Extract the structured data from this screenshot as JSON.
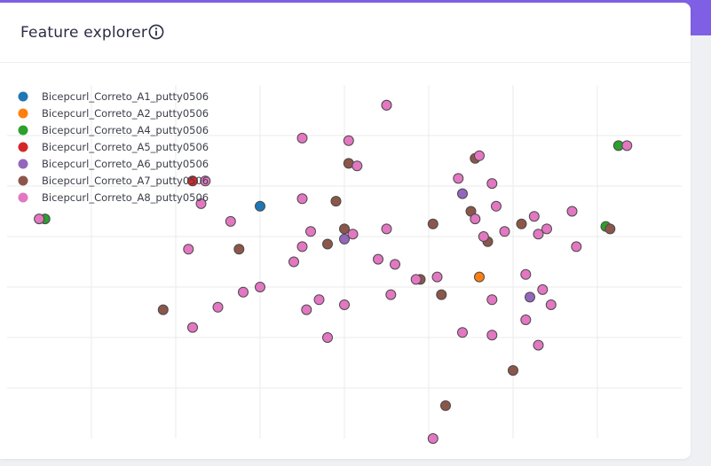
{
  "header": {
    "title": "Feature explorer",
    "info_icon": "info-circle-icon"
  },
  "colors": {
    "accent": "#7f5fe3",
    "card": "#ffffff"
  },
  "chart_data": {
    "type": "scatter",
    "title": "",
    "xlabel": "",
    "ylabel": "",
    "xlim": [
      -2.0,
      6.0
    ],
    "ylim": [
      -1.0,
      6.0
    ],
    "grid": true,
    "legend": "top-left",
    "series": [
      {
        "name": "Bicepcurl_Correto_A1_putty0506",
        "color": "#1f77b4",
        "points": [
          [
            1.0,
            3.6
          ]
        ]
      },
      {
        "name": "Bicepcurl_Correto_A2_putty0506",
        "color": "#ff7f0e",
        "points": [
          [
            3.6,
            2.2
          ]
        ]
      },
      {
        "name": "Bicepcurl_Correto_A4_putty0506",
        "color": "#2ca02c",
        "points": [
          [
            -1.55,
            3.35
          ],
          [
            5.1,
            3.2
          ],
          [
            5.25,
            4.8
          ]
        ]
      },
      {
        "name": "Bicepcurl_Correto_A5_putty0506",
        "color": "#d62728",
        "points": [
          [
            0.2,
            4.1
          ]
        ]
      },
      {
        "name": "Bicepcurl_Correto_A6_putty0506",
        "color": "#9467bd",
        "points": [
          [
            3.4,
            3.85
          ],
          [
            2.0,
            2.95
          ],
          [
            4.2,
            1.8
          ]
        ]
      },
      {
        "name": "Bicepcurl_Correto_A7_putty0506",
        "color": "#8c564b",
        "points": [
          [
            -0.15,
            1.55
          ],
          [
            1.9,
            3.7
          ],
          [
            2.0,
            3.15
          ],
          [
            1.8,
            2.85
          ],
          [
            2.05,
            4.45
          ],
          [
            2.5,
            5.6
          ],
          [
            3.05,
            3.25
          ],
          [
            2.9,
            2.15
          ],
          [
            3.55,
            4.55
          ],
          [
            3.15,
            1.85
          ],
          [
            3.5,
            3.5
          ],
          [
            3.7,
            2.9
          ],
          [
            4.1,
            3.25
          ],
          [
            4.0,
            0.35
          ],
          [
            5.15,
            3.15
          ],
          [
            0.75,
            2.75
          ],
          [
            3.2,
            -0.35
          ]
        ]
      },
      {
        "name": "Bicepcurl_Correto_A8_putty0506",
        "color": "#e377c2",
        "points": [
          [
            -1.62,
            3.35
          ],
          [
            0.35,
            4.1
          ],
          [
            0.3,
            3.65
          ],
          [
            0.15,
            2.75
          ],
          [
            1.5,
            4.95
          ],
          [
            1.5,
            3.75
          ],
          [
            1.55,
            1.55
          ],
          [
            2.5,
            5.6
          ],
          [
            2.05,
            4.9
          ],
          [
            2.15,
            4.4
          ],
          [
            2.1,
            3.05
          ],
          [
            2.5,
            3.15
          ],
          [
            2.6,
            2.45
          ],
          [
            2.85,
            2.15
          ],
          [
            3.1,
            2.2
          ],
          [
            3.6,
            4.6
          ],
          [
            3.35,
            4.15
          ],
          [
            3.75,
            4.05
          ],
          [
            3.8,
            3.6
          ],
          [
            3.55,
            3.35
          ],
          [
            3.65,
            3.0
          ],
          [
            3.9,
            3.1
          ],
          [
            4.25,
            3.4
          ],
          [
            4.4,
            3.15
          ],
          [
            4.7,
            3.5
          ],
          [
            4.75,
            2.8
          ],
          [
            4.45,
            1.65
          ],
          [
            4.15,
            1.35
          ],
          [
            3.75,
            1.75
          ],
          [
            4.3,
            0.85
          ],
          [
            3.75,
            1.05
          ],
          [
            3.4,
            1.1
          ],
          [
            2.55,
            1.85
          ],
          [
            2.4,
            2.55
          ],
          [
            2.0,
            1.65
          ],
          [
            1.4,
            2.5
          ],
          [
            1.5,
            2.8
          ],
          [
            1.6,
            3.1
          ],
          [
            1.0,
            2.0
          ],
          [
            0.5,
            1.6
          ],
          [
            0.2,
            1.2
          ],
          [
            1.7,
            1.75
          ],
          [
            1.8,
            1.0
          ],
          [
            0.8,
            1.9
          ],
          [
            0.65,
            3.3
          ],
          [
            4.15,
            2.25
          ],
          [
            4.3,
            3.05
          ],
          [
            4.35,
            1.95
          ],
          [
            3.05,
            -1.0
          ],
          [
            5.35,
            4.8
          ]
        ]
      }
    ]
  }
}
